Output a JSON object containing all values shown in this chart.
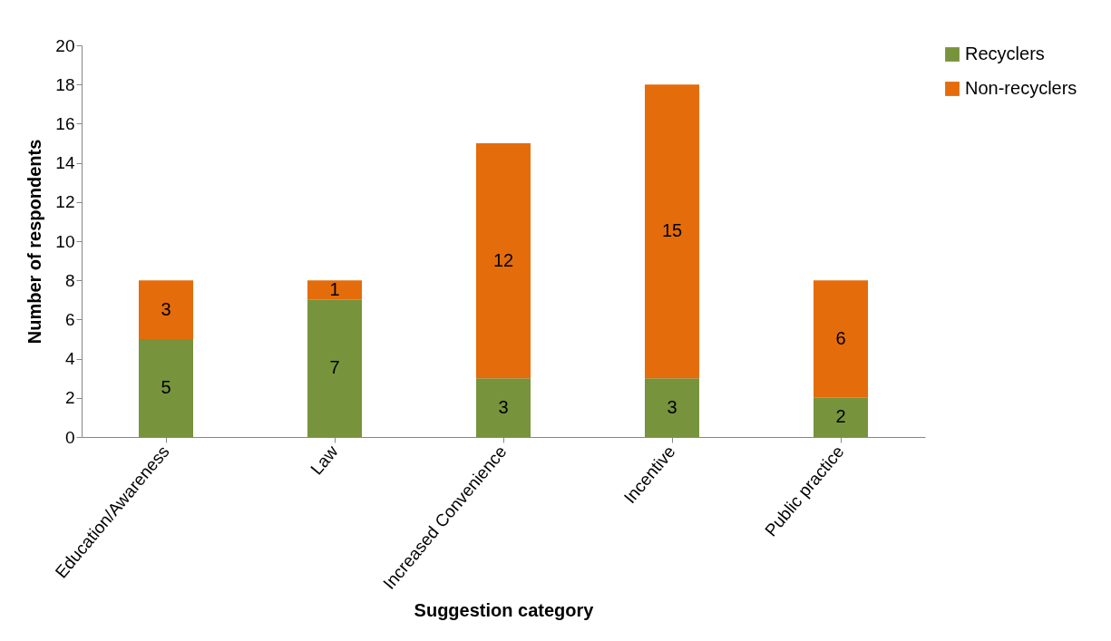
{
  "chart_data": {
    "type": "bar",
    "stacked": true,
    "xlabel": "Suggestion category",
    "ylabel": "Number of respondents",
    "categories": [
      "Education/Awareness",
      "Law",
      "Increased Convenience",
      "Incentive",
      "Public practice"
    ],
    "series": [
      {
        "name": "Recyclers",
        "color": "#77933c",
        "values": [
          5,
          7,
          3,
          3,
          2
        ]
      },
      {
        "name": "Non-recyclers",
        "color": "#e46c0a",
        "values": [
          3,
          1,
          12,
          15,
          6
        ]
      }
    ],
    "ylim": [
      0,
      20
    ],
    "yticks": [
      0,
      2,
      4,
      6,
      8,
      10,
      12,
      14,
      16,
      18,
      20
    ],
    "grid": false,
    "legend": "right",
    "data_labels": true
  }
}
